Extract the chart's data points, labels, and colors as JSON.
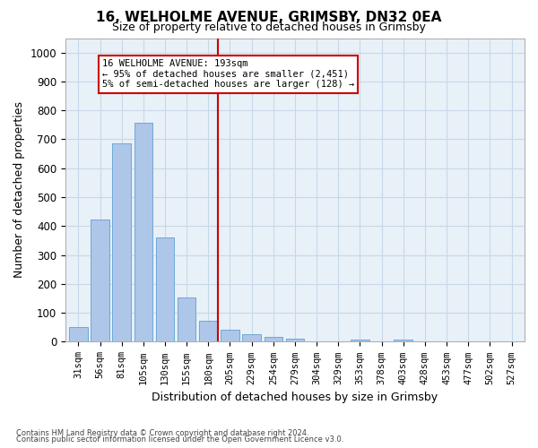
{
  "title1": "16, WELHOLME AVENUE, GRIMSBY, DN32 0EA",
  "title2": "Size of property relative to detached houses in Grimsby",
  "xlabel": "Distribution of detached houses by size in Grimsby",
  "ylabel": "Number of detached properties",
  "categories": [
    "31sqm",
    "56sqm",
    "81sqm",
    "105sqm",
    "130sqm",
    "155sqm",
    "180sqm",
    "205sqm",
    "229sqm",
    "254sqm",
    "279sqm",
    "304sqm",
    "329sqm",
    "353sqm",
    "378sqm",
    "403sqm",
    "428sqm",
    "453sqm",
    "477sqm",
    "502sqm",
    "527sqm"
  ],
  "values": [
    52,
    422,
    685,
    757,
    362,
    153,
    73,
    42,
    27,
    18,
    11,
    0,
    0,
    8,
    0,
    9,
    0,
    0,
    0,
    0,
    0
  ],
  "bar_color": "#aec6e8",
  "bar_edge_color": "#6ea8d8",
  "ylim": [
    0,
    1050
  ],
  "yticks": [
    0,
    100,
    200,
    300,
    400,
    500,
    600,
    700,
    800,
    900,
    1000
  ],
  "vline_x": 6.45,
  "vline_color": "#cc0000",
  "annotation_title": "16 WELHOLME AVENUE: 193sqm",
  "annotation_line1": "← 95% of detached houses are smaller (2,451)",
  "annotation_line2": "5% of semi-detached houses are larger (128) →",
  "annotation_box_color": "#cc0000",
  "footer1": "Contains HM Land Registry data © Crown copyright and database right 2024.",
  "footer2": "Contains public sector information licensed under the Open Government Licence v3.0.",
  "grid_color": "#c8d8e8",
  "bg_color": "#e8f0f8"
}
